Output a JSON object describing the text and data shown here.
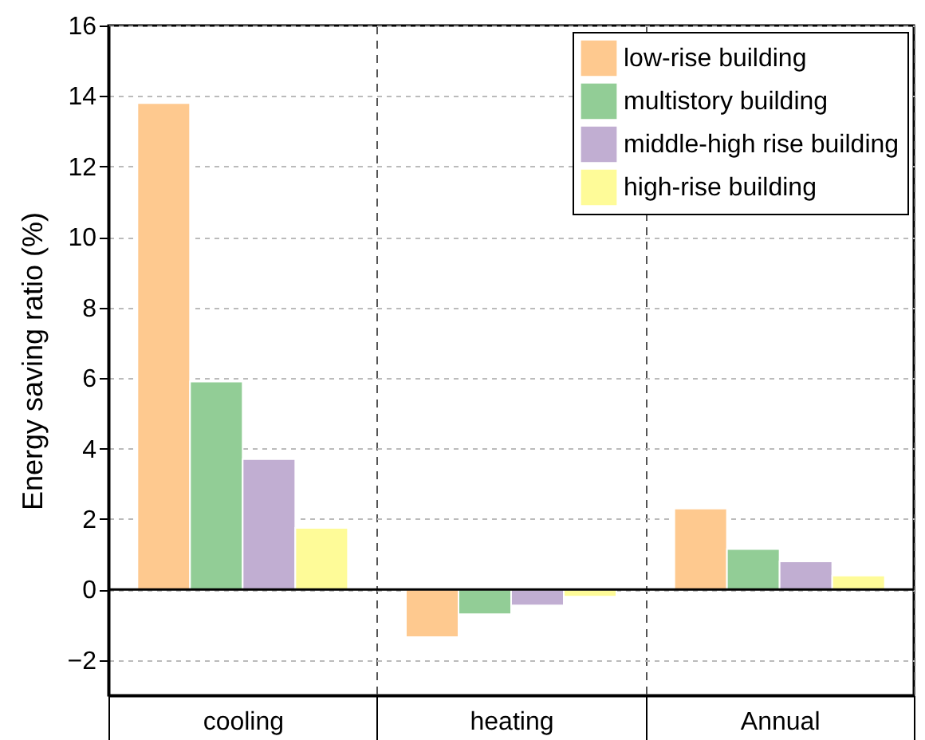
{
  "chart_data": {
    "type": "bar",
    "ylabel": "Energy saving ratio (%)",
    "categories": [
      "cooling",
      "heating",
      "Annual"
    ],
    "series": [
      {
        "name": "low-rise building",
        "color": "#fec98f",
        "values": [
          13.8,
          -1.35,
          2.3
        ]
      },
      {
        "name": "multistory building",
        "color": "#92cd96",
        "values": [
          5.9,
          -0.7,
          1.15
        ]
      },
      {
        "name": "middle-high rise building",
        "color": "#c1aed2",
        "values": [
          3.7,
          -0.45,
          0.8
        ]
      },
      {
        "name": "high-rise building",
        "color": "#fefb98",
        "values": [
          1.75,
          -0.2,
          0.4
        ]
      }
    ],
    "ylim": [
      -3,
      16
    ],
    "yticks": [
      -2,
      0,
      2,
      4,
      6,
      8,
      10,
      12,
      14,
      16
    ],
    "grid": true,
    "legend": "top right",
    "ref_lines": [
      {
        "axis": "y",
        "value": 0,
        "color": "#000000"
      }
    ]
  }
}
